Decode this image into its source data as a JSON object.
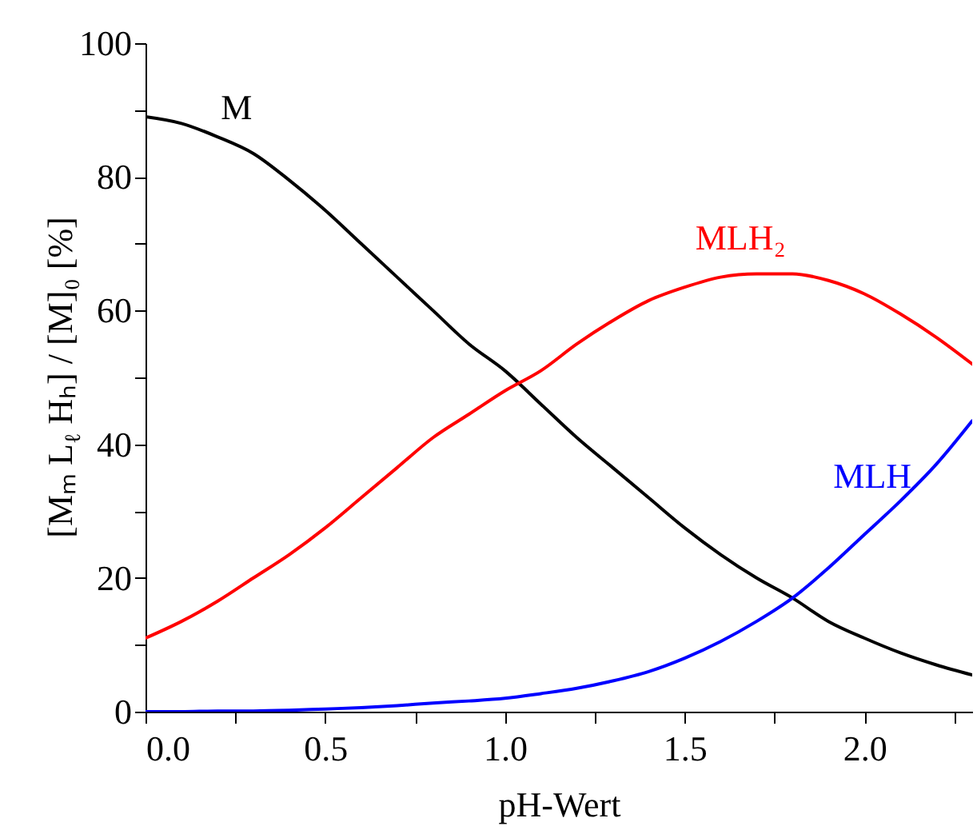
{
  "chart_data": {
    "type": "line",
    "xlabel": "pH-Wert",
    "ylabel": "[Mₘ L$_{ℓ}$ Hₕ] / [M]₀ [%]",
    "x": [
      0,
      0.1,
      0.2,
      0.3,
      0.4,
      0.5,
      0.6,
      0.7,
      0.8,
      0.9,
      1.0,
      1.1,
      1.2,
      1.3,
      1.4,
      1.5,
      1.6,
      1.7,
      1.8,
      1.9,
      2.0,
      2.1,
      2.2,
      2.3
    ],
    "series": [
      {
        "name": "M",
        "color": "#000000",
        "values": [
          89,
          88,
          86,
          83.5,
          79.5,
          75,
          70,
          65,
          60,
          55,
          51,
          46,
          41,
          36.5,
          32,
          27.5,
          23.5,
          20,
          17,
          13.5,
          11,
          8.8,
          7,
          5.5
        ]
      },
      {
        "name": "MLH₂",
        "color": "#ff0000",
        "values": [
          11,
          13.5,
          16.5,
          20,
          23.5,
          27.5,
          32,
          36.5,
          41,
          44.5,
          48,
          51,
          55,
          58.5,
          61.5,
          63.5,
          65,
          65.5,
          65.5,
          64.5,
          62.5,
          59.5,
          56,
          52
        ]
      },
      {
        "name": "MLH",
        "color": "#0000ff",
        "values": [
          0,
          0,
          0.1,
          0.1,
          0.2,
          0.4,
          0.6,
          0.9,
          1.3,
          1.6,
          2,
          2.7,
          3.5,
          4.6,
          6,
          8,
          10.5,
          13.5,
          17,
          21.5,
          26.5,
          31.5,
          37,
          43.5
        ]
      }
    ],
    "xlim": [
      0,
      2.3
    ],
    "xticks": [
      {
        "value": 0,
        "label": "0.0"
      },
      {
        "value": 0.25,
        "label": null
      },
      {
        "value": 0.5,
        "label": "0.5"
      },
      {
        "value": 0.75,
        "label": null
      },
      {
        "value": 1.0,
        "label": "1.0"
      },
      {
        "value": 1.25,
        "label": null
      },
      {
        "value": 1.5,
        "label": "1.5"
      },
      {
        "value": 1.75,
        "label": null
      },
      {
        "value": 2.0,
        "label": "2.0"
      },
      {
        "value": 2.25,
        "label": null
      }
    ],
    "ylim": [
      0,
      100
    ],
    "yticks": [
      0,
      {
        "value": 10,
        "label": null
      },
      20,
      {
        "value": 30,
        "label": null
      },
      40,
      {
        "value": 50,
        "label": null
      },
      60,
      {
        "value": 70,
        "label": null
      },
      80,
      {
        "value": 90,
        "label": null
      },
      100
    ],
    "grid": false,
    "legend": false,
    "marker": "none",
    "line_style": "solid"
  }
}
